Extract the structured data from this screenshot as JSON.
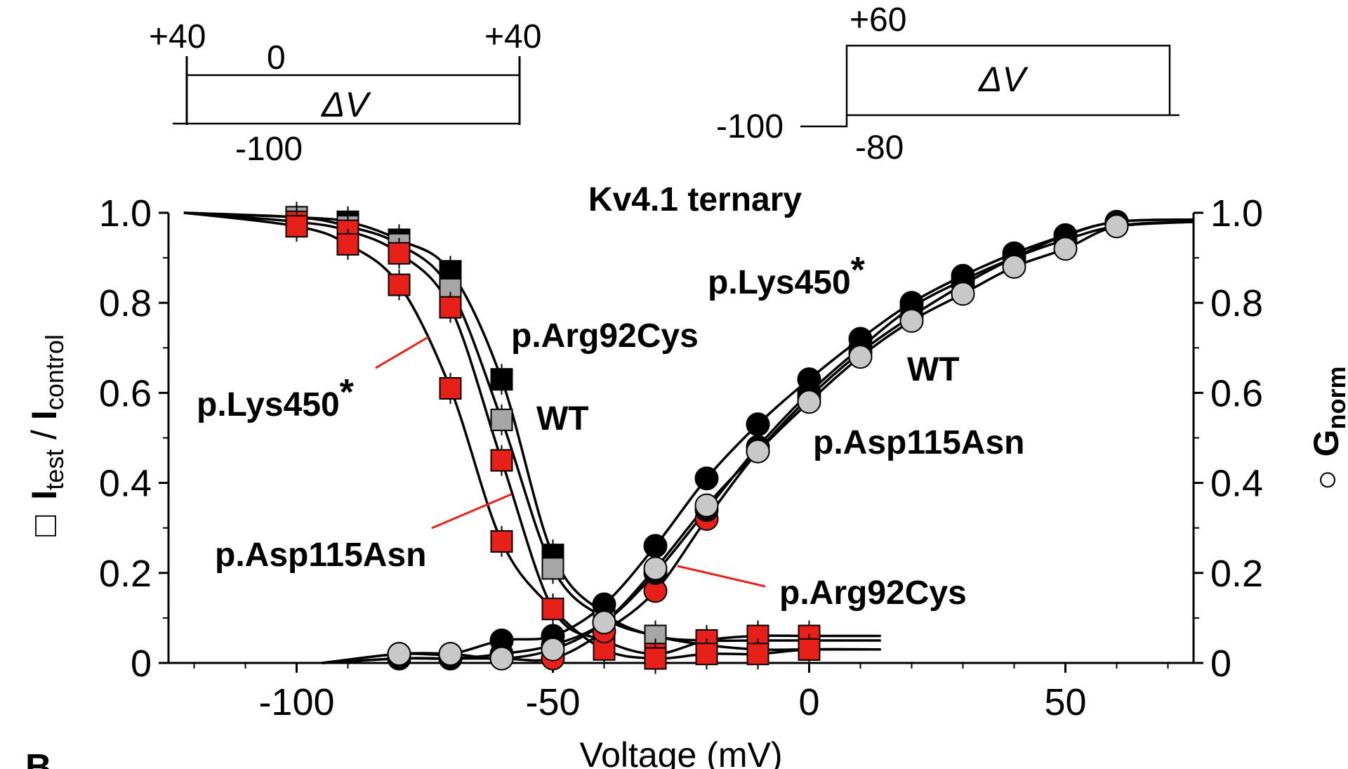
{
  "chart_data": {
    "type": "scatter",
    "title": "Kv4.1 ternary",
    "xlabel": "Voltage (mV)",
    "ylabel_left": {
      "symbol": "□",
      "num_main": "I",
      "num_sub": "test",
      "separator": " / ",
      "den_main": "I",
      "den_sub": "control"
    },
    "ylabel_right": {
      "symbol": "○",
      "main": "G",
      "sub": "norm"
    },
    "xlim": [
      -125,
      75
    ],
    "ylim": [
      0,
      1
    ],
    "x_ticks": [
      -100,
      -50,
      0,
      50
    ],
    "y_ticks_left": [
      "0",
      "0.2",
      "0.4",
      "0.6",
      "0.8",
      "1.0"
    ],
    "y_ticks_right": [
      "0",
      "0.2",
      "0.4",
      "0.6",
      "0.8",
      "1.0"
    ],
    "panel_letter": "B",
    "colors": {
      "WT": "#a6a6a6",
      "p.Arg92Cys": "#000000",
      "p.Lys450*": "#e8201a",
      "p.Asp115Asn": "#e8201a"
    },
    "series": [
      {
        "name": "p.Arg92Cys",
        "kind": "inactivation",
        "marker": "square",
        "color": "#000000",
        "x": [
          -100,
          -90,
          -80,
          -70,
          -60,
          -50,
          -40,
          -30,
          -20,
          -10,
          0
        ],
        "y": [
          0.99,
          0.98,
          0.94,
          0.87,
          0.63,
          0.24,
          0.11,
          0.06,
          0.05,
          0.05,
          0.05
        ]
      },
      {
        "name": "WT",
        "kind": "inactivation",
        "marker": "square",
        "color": "#a6a6a6",
        "x": [
          -100,
          -90,
          -80,
          -70,
          -60,
          -50,
          -40,
          -30,
          -20,
          -10,
          0
        ],
        "y": [
          0.99,
          0.97,
          0.93,
          0.83,
          0.54,
          0.21,
          0.1,
          0.06,
          0.04,
          0.03,
          0.03
        ]
      },
      {
        "name": "p.Asp115Asn",
        "kind": "inactivation",
        "marker": "square",
        "color": "#e8201a",
        "x": [
          -100,
          -90,
          -80,
          -70,
          -60,
          -50,
          -40,
          -30,
          -20,
          -10,
          0
        ],
        "y": [
          0.98,
          0.96,
          0.91,
          0.79,
          0.45,
          0.12,
          0.05,
          0.02,
          0.05,
          0.06,
          0.06
        ]
      },
      {
        "name": "p.Lys450*",
        "kind": "inactivation",
        "marker": "square",
        "color": "#e8201a",
        "x": [
          -100,
          -90,
          -80,
          -70,
          -60,
          -50,
          -40,
          -30,
          -20,
          -10,
          0
        ],
        "y": [
          0.97,
          0.93,
          0.84,
          0.61,
          0.27,
          0.12,
          0.03,
          0.01,
          0.02,
          0.02,
          0.03
        ]
      },
      {
        "name": "p.Lys450*",
        "kind": "activation",
        "marker": "circle",
        "color": "#e8201a",
        "x": [
          -80,
          -70,
          -60,
          -50,
          -40,
          -30,
          -20,
          -10,
          0,
          10,
          20,
          30,
          40,
          50,
          60
        ],
        "y": [
          0.01,
          0.01,
          0.01,
          0.01,
          0.07,
          0.16,
          0.32,
          0.47,
          0.59,
          0.69,
          0.77,
          0.84,
          0.9,
          0.95,
          0.98
        ]
      },
      {
        "name": "p.Arg92Cys",
        "kind": "activation",
        "marker": "circle",
        "color": "#000000",
        "x": [
          -80,
          -70,
          -60,
          -50,
          -40,
          -30,
          -20,
          -10,
          0,
          10,
          20,
          30,
          40,
          50,
          60
        ],
        "y": [
          0.02,
          0.02,
          0.05,
          0.06,
          0.13,
          0.26,
          0.41,
          0.53,
          0.63,
          0.72,
          0.8,
          0.86,
          0.91,
          0.95,
          0.98
        ]
      },
      {
        "name": "p.Asp115Asn",
        "kind": "activation",
        "marker": "circle",
        "color": "#000000",
        "x": [
          -80,
          -70,
          -60,
          -50,
          -40,
          -30,
          -20,
          -10,
          0,
          10,
          20,
          30,
          40,
          50,
          60
        ],
        "y": [
          0.01,
          0.01,
          0.02,
          0.04,
          0.09,
          0.2,
          0.34,
          0.48,
          0.6,
          0.7,
          0.79,
          0.85,
          0.9,
          0.94,
          0.97
        ]
      },
      {
        "name": "WT",
        "kind": "activation",
        "marker": "circle",
        "color": "#c8c8c8",
        "x": [
          -80,
          -70,
          -60,
          -50,
          -40,
          -30,
          -20,
          -10,
          0,
          10,
          20,
          30,
          40,
          50,
          60
        ],
        "y": [
          0.02,
          0.02,
          0.01,
          0.03,
          0.09,
          0.21,
          0.35,
          0.47,
          0.58,
          0.68,
          0.76,
          0.82,
          0.88,
          0.92,
          0.97
        ]
      }
    ],
    "series_labels": [
      {
        "text": "p.Lys450",
        "suffix": "*",
        "color": "#000000"
      },
      {
        "text": "p.Arg92Cys",
        "suffix": "",
        "color": "#000000"
      },
      {
        "text": "WT",
        "suffix": "",
        "color": "#a6a6a6"
      },
      {
        "text": "p.Asp115Asn",
        "suffix": "",
        "color": "#000000"
      },
      {
        "text": "WT",
        "suffix": "",
        "color": "#a6a6a6"
      },
      {
        "text": "p.Lys450",
        "suffix": "*",
        "color": "#e8201a"
      },
      {
        "text": "p.Asp115Asn",
        "suffix": "",
        "color": "#e8201a"
      },
      {
        "text": "p.Arg92Cys",
        "suffix": "",
        "color": "#e8201a"
      }
    ]
  },
  "protocols": {
    "inactivation": {
      "hold_left": "+40",
      "hold_right": "+40",
      "test_top": "0",
      "test_bottom": "-100",
      "step_label": "ΔV"
    },
    "activation": {
      "top": "+60",
      "hold": "-100",
      "bottom": "-80",
      "step_label": "ΔV"
    }
  }
}
